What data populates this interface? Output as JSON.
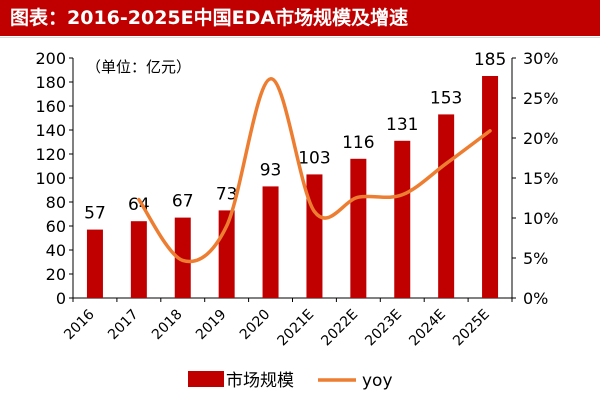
{
  "title": "图表：2016-2025E中国EDA市场规模及增速",
  "unit_note": "（单位：亿元）",
  "colors": {
    "title_bg": "#c00000",
    "bar": "#c00000",
    "line": "#ed7d31"
  },
  "chart_data": {
    "type": "bar",
    "title": "图表：2016-2025E中国EDA市场规模及增速",
    "categories": [
      "2016",
      "2017",
      "2018",
      "2019",
      "2020",
      "2021E",
      "2022E",
      "2023E",
      "2024E",
      "2025E"
    ],
    "series": [
      {
        "name": "市场规模",
        "type": "bar",
        "axis": "left",
        "values": [
          57,
          64,
          67,
          73,
          93,
          103,
          116,
          131,
          153,
          185
        ]
      },
      {
        "name": "yoy",
        "type": "line",
        "axis": "right",
        "smooth": true,
        "values": [
          null,
          12.3,
          4.7,
          9.0,
          27.4,
          10.8,
          12.6,
          12.9,
          16.8,
          20.9
        ]
      }
    ],
    "left_axis": {
      "ylim": [
        0,
        200
      ],
      "ticks": [
        "0",
        "20",
        "40",
        "60",
        "80",
        "100",
        "120",
        "140",
        "160",
        "180",
        "200"
      ]
    },
    "right_axis": {
      "ylim": [
        0,
        30
      ],
      "ticks": [
        "0%",
        "5%",
        "10%",
        "15%",
        "20%",
        "25%",
        "30%"
      ]
    },
    "grid": false,
    "legend_position": "bottom"
  }
}
